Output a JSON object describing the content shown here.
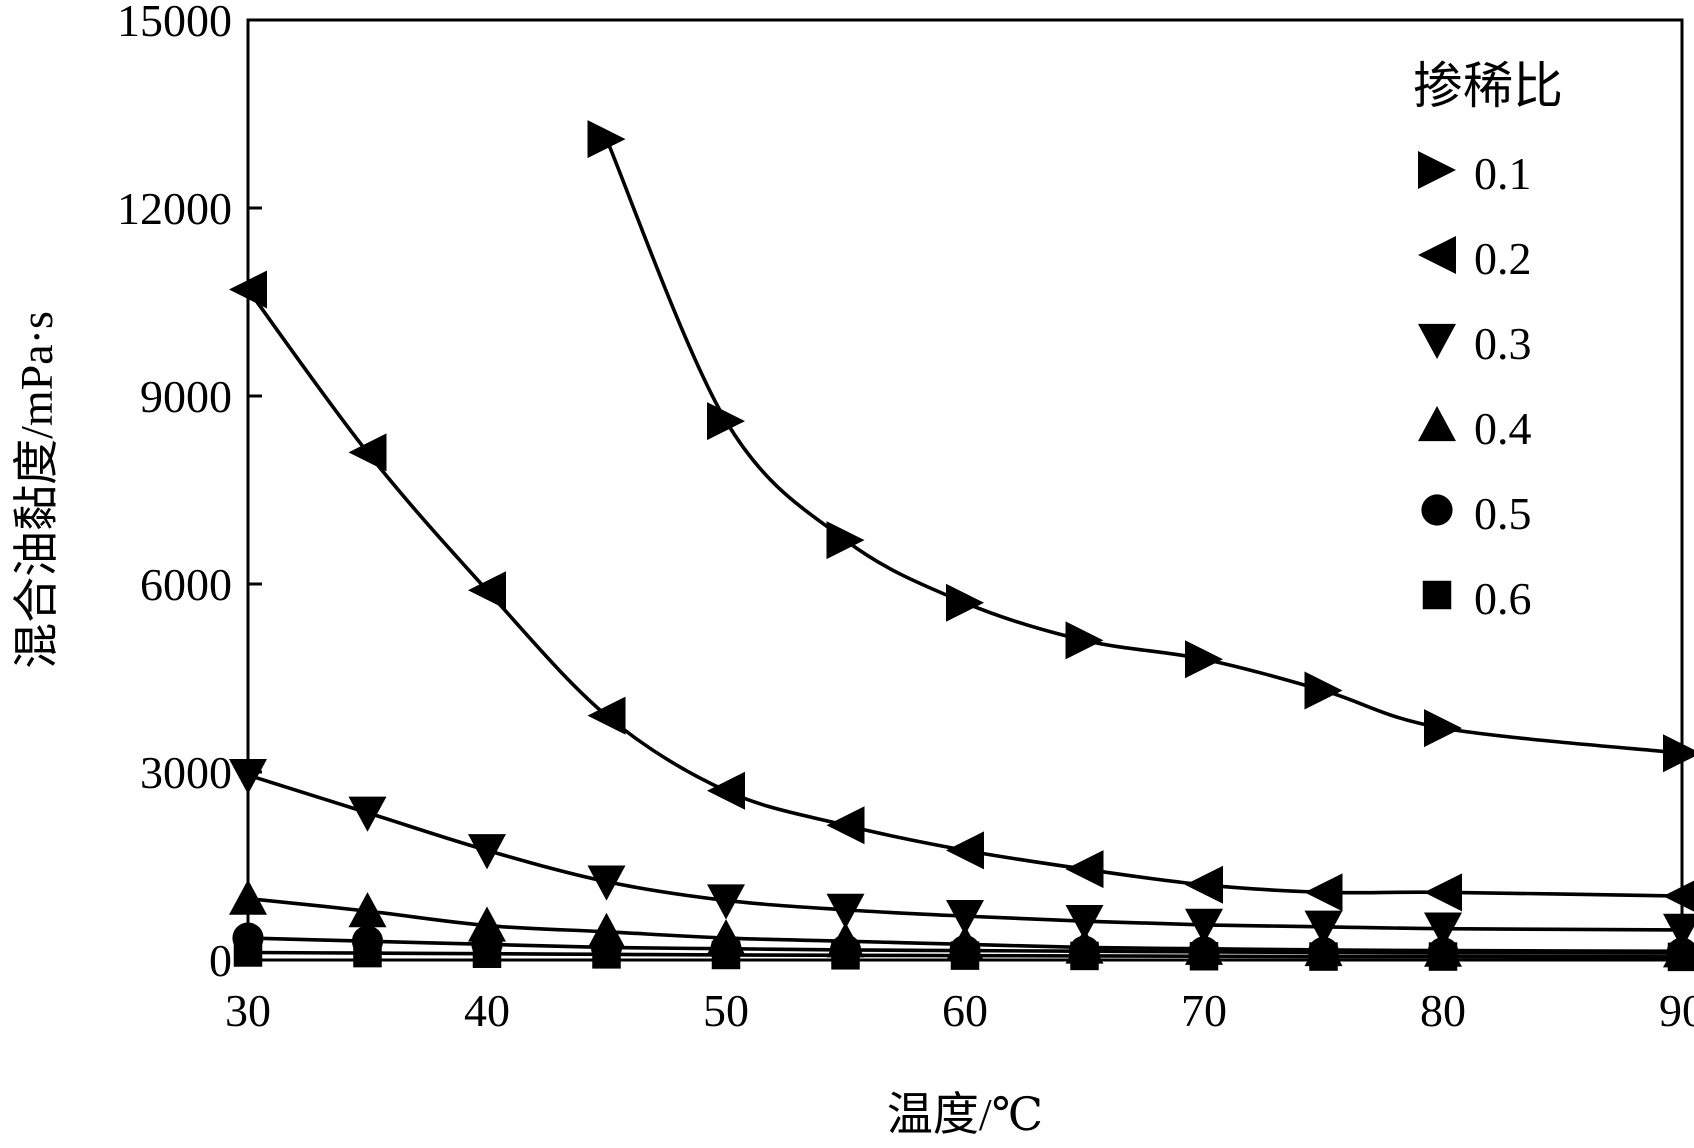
{
  "chart_data": {
    "type": "line",
    "title": "",
    "xlabel": "温度/℃",
    "ylabel": "混合油黏度/mPa·s",
    "xlim": [
      30,
      90
    ],
    "ylim": [
      0,
      15000
    ],
    "xticks": [
      30,
      40,
      50,
      60,
      70,
      80,
      90
    ],
    "xtick_labels": [
      "30",
      "40",
      "50",
      "60",
      "70",
      "80",
      "90"
    ],
    "yticks": [
      0,
      3000,
      6000,
      9000,
      12000,
      15000
    ],
    "ytick_labels": [
      "0",
      "3000",
      "6000",
      "9000",
      "12000",
      "15000"
    ],
    "grid": false,
    "legend": {
      "title": "掺稀比",
      "position": "top-right"
    },
    "series": [
      {
        "name": "0.1",
        "marker": "triangle-right",
        "x": [
          45,
          50,
          55,
          60,
          65,
          70,
          75,
          80,
          90
        ],
        "y": [
          13100,
          8600,
          6700,
          5700,
          5100,
          4800,
          4300,
          3700,
          3300
        ]
      },
      {
        "name": "0.2",
        "marker": "triangle-left",
        "x": [
          30,
          35,
          40,
          45,
          50,
          55,
          60,
          65,
          70,
          75,
          80,
          90
        ],
        "y": [
          10700,
          8100,
          5900,
          3900,
          2700,
          2150,
          1750,
          1450,
          1200,
          1080,
          1080,
          1020
        ]
      },
      {
        "name": "0.3",
        "marker": "triangle-down",
        "x": [
          30,
          35,
          40,
          45,
          50,
          55,
          60,
          65,
          70,
          75,
          80,
          90
        ],
        "y": [
          2950,
          2350,
          1750,
          1250,
          950,
          800,
          700,
          620,
          560,
          530,
          500,
          480
        ]
      },
      {
        "name": "0.4",
        "marker": "triangle-up",
        "x": [
          30,
          35,
          40,
          45,
          50,
          55,
          60,
          65,
          70,
          75,
          80,
          90
        ],
        "y": [
          980,
          780,
          550,
          450,
          350,
          300,
          250,
          200,
          180,
          160,
          150,
          140
        ]
      },
      {
        "name": "0.5",
        "marker": "circle",
        "x": [
          30,
          35,
          40,
          45,
          50,
          55,
          60,
          65,
          70,
          75,
          80,
          90
        ],
        "y": [
          350,
          300,
          250,
          200,
          180,
          160,
          150,
          140,
          130,
          120,
          115,
          110
        ]
      },
      {
        "name": "0.6",
        "marker": "square",
        "x": [
          30,
          35,
          40,
          45,
          50,
          55,
          60,
          65,
          70,
          75,
          80,
          90
        ],
        "y": [
          120,
          110,
          100,
          90,
          80,
          75,
          70,
          65,
          60,
          55,
          55,
          50
        ]
      }
    ]
  }
}
